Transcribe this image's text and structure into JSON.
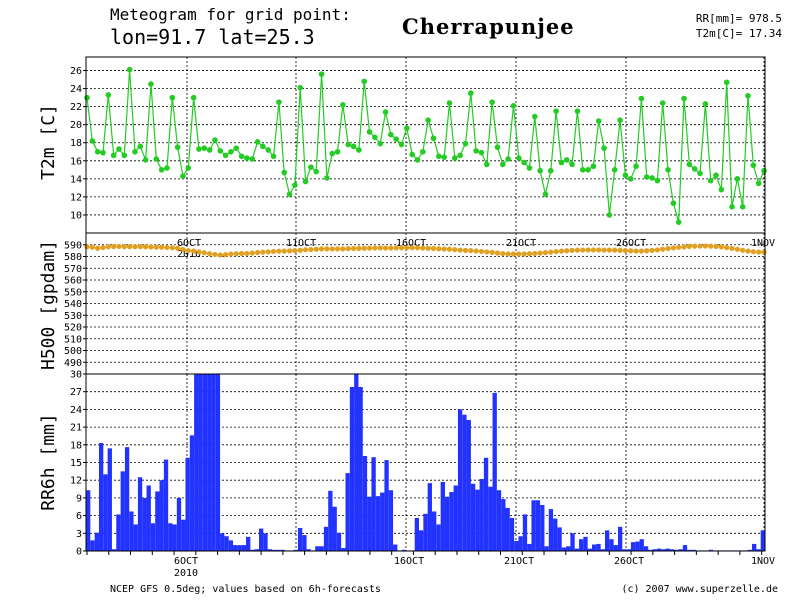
{
  "header": {
    "line1": "Meteogram for grid point:",
    "line2": "lon=91.7 lat=25.3",
    "location": "Cherrapunjee",
    "rr_total": "RR[mm]= 978.5",
    "t2m_mean": "T2m[C]= 17.34"
  },
  "footer": {
    "source": "NCEP GFS 0.5deg; values based on 6h-forecasts",
    "copyright": "(c) 2007 www.superzelle.de"
  },
  "colors": {
    "t2m": "#22cc22",
    "h500": "#e0a020",
    "rr": "#2233ff"
  },
  "chart_data": [
    {
      "type": "line",
      "ylabel": "T2m [C]",
      "ylim": [
        8,
        27.5
      ],
      "yticks": [
        10,
        12,
        14,
        16,
        18,
        20,
        22,
        24,
        26
      ],
      "x_range_days": [
        1.5,
        32.25
      ],
      "series": [
        {
          "values": [
            23.0,
            18.2,
            17.0,
            16.9,
            23.3,
            16.6,
            17.3,
            16.6,
            26.1,
            17.0,
            17.6,
            16.1,
            24.5,
            16.2,
            15.0,
            15.2,
            23.0,
            17.5,
            14.3,
            15.2,
            23.0,
            17.3,
            17.4,
            17.2,
            18.3,
            17.1,
            16.6,
            17.0,
            17.4,
            16.5,
            16.3,
            16.2,
            18.1,
            17.6,
            17.2,
            16.5,
            22.5,
            14.7,
            12.3,
            13.3,
            24.1,
            13.7,
            15.3,
            14.8,
            25.6,
            14.1,
            16.8,
            17.0,
            22.2,
            17.8,
            17.6,
            17.2,
            24.8,
            19.2,
            18.6,
            17.9,
            21.4,
            18.9,
            18.4,
            17.8,
            19.6,
            16.7,
            16.1,
            17.0,
            20.5,
            18.5,
            16.5,
            16.4,
            22.4,
            16.3,
            16.6,
            17.9,
            23.5,
            17.1,
            16.9,
            15.6,
            22.5,
            17.5,
            15.6,
            16.2,
            22.1,
            16.3,
            15.8,
            15.2,
            20.9,
            14.9,
            12.3,
            14.9,
            21.5,
            15.8,
            16.1,
            15.6,
            21.5,
            15.0,
            15.0,
            15.4,
            20.4,
            17.4,
            10.0,
            15.0,
            20.5,
            14.4,
            14.0,
            15.4,
            22.9,
            14.2,
            14.1,
            13.8,
            22.4,
            15.0,
            11.3,
            9.2,
            22.9,
            15.6,
            15.1,
            14.6,
            22.3,
            13.8,
            14.4,
            12.8,
            24.7,
            10.9,
            14.0,
            10.9,
            23.2,
            15.5,
            13.5,
            14.9
          ]
        }
      ],
      "annotations": [
        "6OCT",
        "2010",
        "11OCT",
        "16OCT",
        "21OCT",
        "26OCT",
        "1NOV"
      ]
    },
    {
      "type": "line",
      "ylabel": "H500 [gpdam]",
      "ylim": [
        480,
        600
      ],
      "yticks": [
        490,
        500,
        510,
        520,
        530,
        540,
        550,
        560,
        570,
        580,
        590
      ],
      "series": [
        {
          "values": [
            588.3,
            588.0,
            587.0,
            587.6,
            588.3,
            588.5,
            588.6,
            588.4,
            588.4,
            588.4,
            588.4,
            588.3,
            588.1,
            587.9,
            587.9,
            587.7,
            587.5,
            587.0,
            586.0,
            585.0,
            584.6,
            583.9,
            583.2,
            582.4,
            581.7,
            581.3,
            581.6,
            582.2,
            582.4,
            582.6,
            582.6,
            583.0,
            583.4,
            583.7,
            584.0,
            584.3,
            584.5,
            584.6,
            584.8,
            585.0,
            585.3,
            585.8,
            585.9,
            586.2,
            586.5,
            586.6,
            586.5,
            586.5,
            586.5,
            586.7,
            586.8,
            586.9,
            587.0,
            587.1,
            587.2,
            587.3,
            587.2,
            587.2,
            587.3,
            587.4,
            587.5,
            587.5,
            587.4,
            587.2,
            587.0,
            586.8,
            586.6,
            586.4,
            586.2,
            585.9,
            585.5,
            585.2,
            585.0,
            584.7,
            584.3,
            583.9,
            583.5,
            583.0,
            582.5,
            582.2,
            582.1,
            582.1,
            582.2,
            582.4,
            582.6,
            582.9,
            583.3,
            583.7,
            584.2,
            584.6,
            584.9,
            585.2,
            585.4,
            585.5,
            585.6,
            585.6,
            585.6,
            585.5,
            585.5,
            585.4,
            585.2,
            585.0,
            584.8,
            584.6,
            584.6,
            584.9,
            585.2,
            585.6,
            586.2,
            586.8,
            587.3,
            587.8,
            588.2,
            588.6,
            588.8,
            588.9,
            588.9,
            588.8,
            588.6,
            588.2,
            587.6,
            586.9,
            586.1,
            585.3,
            584.6,
            584.1,
            583.8,
            583.6
          ]
        }
      ]
    },
    {
      "type": "bar",
      "ylabel": "RR6h [mm]",
      "ylim": [
        0,
        30
      ],
      "yticks": [
        0,
        3,
        6,
        9,
        12,
        15,
        18,
        21,
        24,
        27,
        30
      ],
      "values": [
        10.3,
        1.8,
        3.1,
        18.3,
        13.0,
        17.4,
        0.3,
        6.2,
        13.5,
        17.6,
        6.7,
        4.5,
        12.5,
        9.0,
        11.1,
        4.7,
        10.1,
        12.0,
        15.5,
        4.7,
        4.5,
        9.0,
        5.3,
        15.8,
        19.6,
        30,
        30,
        30,
        30,
        30,
        30,
        3.0,
        2.5,
        1.8,
        1.0,
        1.0,
        1.0,
        2.4,
        0.2,
        0.3,
        3.8,
        3.0,
        0.3,
        0.2,
        0.2,
        0.2,
        0.1,
        0.1,
        0.2,
        3.9,
        2.7,
        0.3,
        0.1,
        0.8,
        0.8,
        4.1,
        10.2,
        7.5,
        3.1,
        0.5,
        13.2,
        27.8,
        30,
        27.8,
        16.1,
        9.2,
        15.9,
        9.3,
        9.9,
        15.4,
        10.3,
        1.1,
        0.1,
        0.2,
        0.1,
        0.1,
        5.6,
        3.5,
        6.3,
        11.5,
        6.7,
        4.5,
        11.7,
        9.2,
        10.0,
        11.1,
        24.0,
        23.1,
        22.2,
        11.4,
        10.4,
        12.2,
        15.8,
        10.9,
        26.8,
        10.3,
        8.8,
        7.3,
        5.6,
        1.7,
        2.5,
        6.2,
        1.2,
        8.6,
        8.6,
        7.8,
        0.8,
        7.1,
        5.5,
        4.0,
        0.6,
        0.8,
        3.0,
        0.4,
        2.0,
        2.4,
        0.4,
        1.1,
        1.2,
        0.3,
        3.5,
        2.0,
        1.0,
        4.1,
        0.3,
        0.3,
        1.5,
        1.6,
        2.0,
        0.8,
        0.2,
        0.3,
        0.4,
        0.3,
        0.4,
        0.3,
        0.2,
        0.3,
        1.0,
        0.2,
        0.2,
        0.1,
        0.1,
        0.1,
        0.2,
        0.1,
        0.1,
        0.1,
        0.1,
        0.1,
        0.1,
        0.1,
        0.1,
        0.2,
        1.2,
        0.3,
        3.5
      ]
    }
  ]
}
